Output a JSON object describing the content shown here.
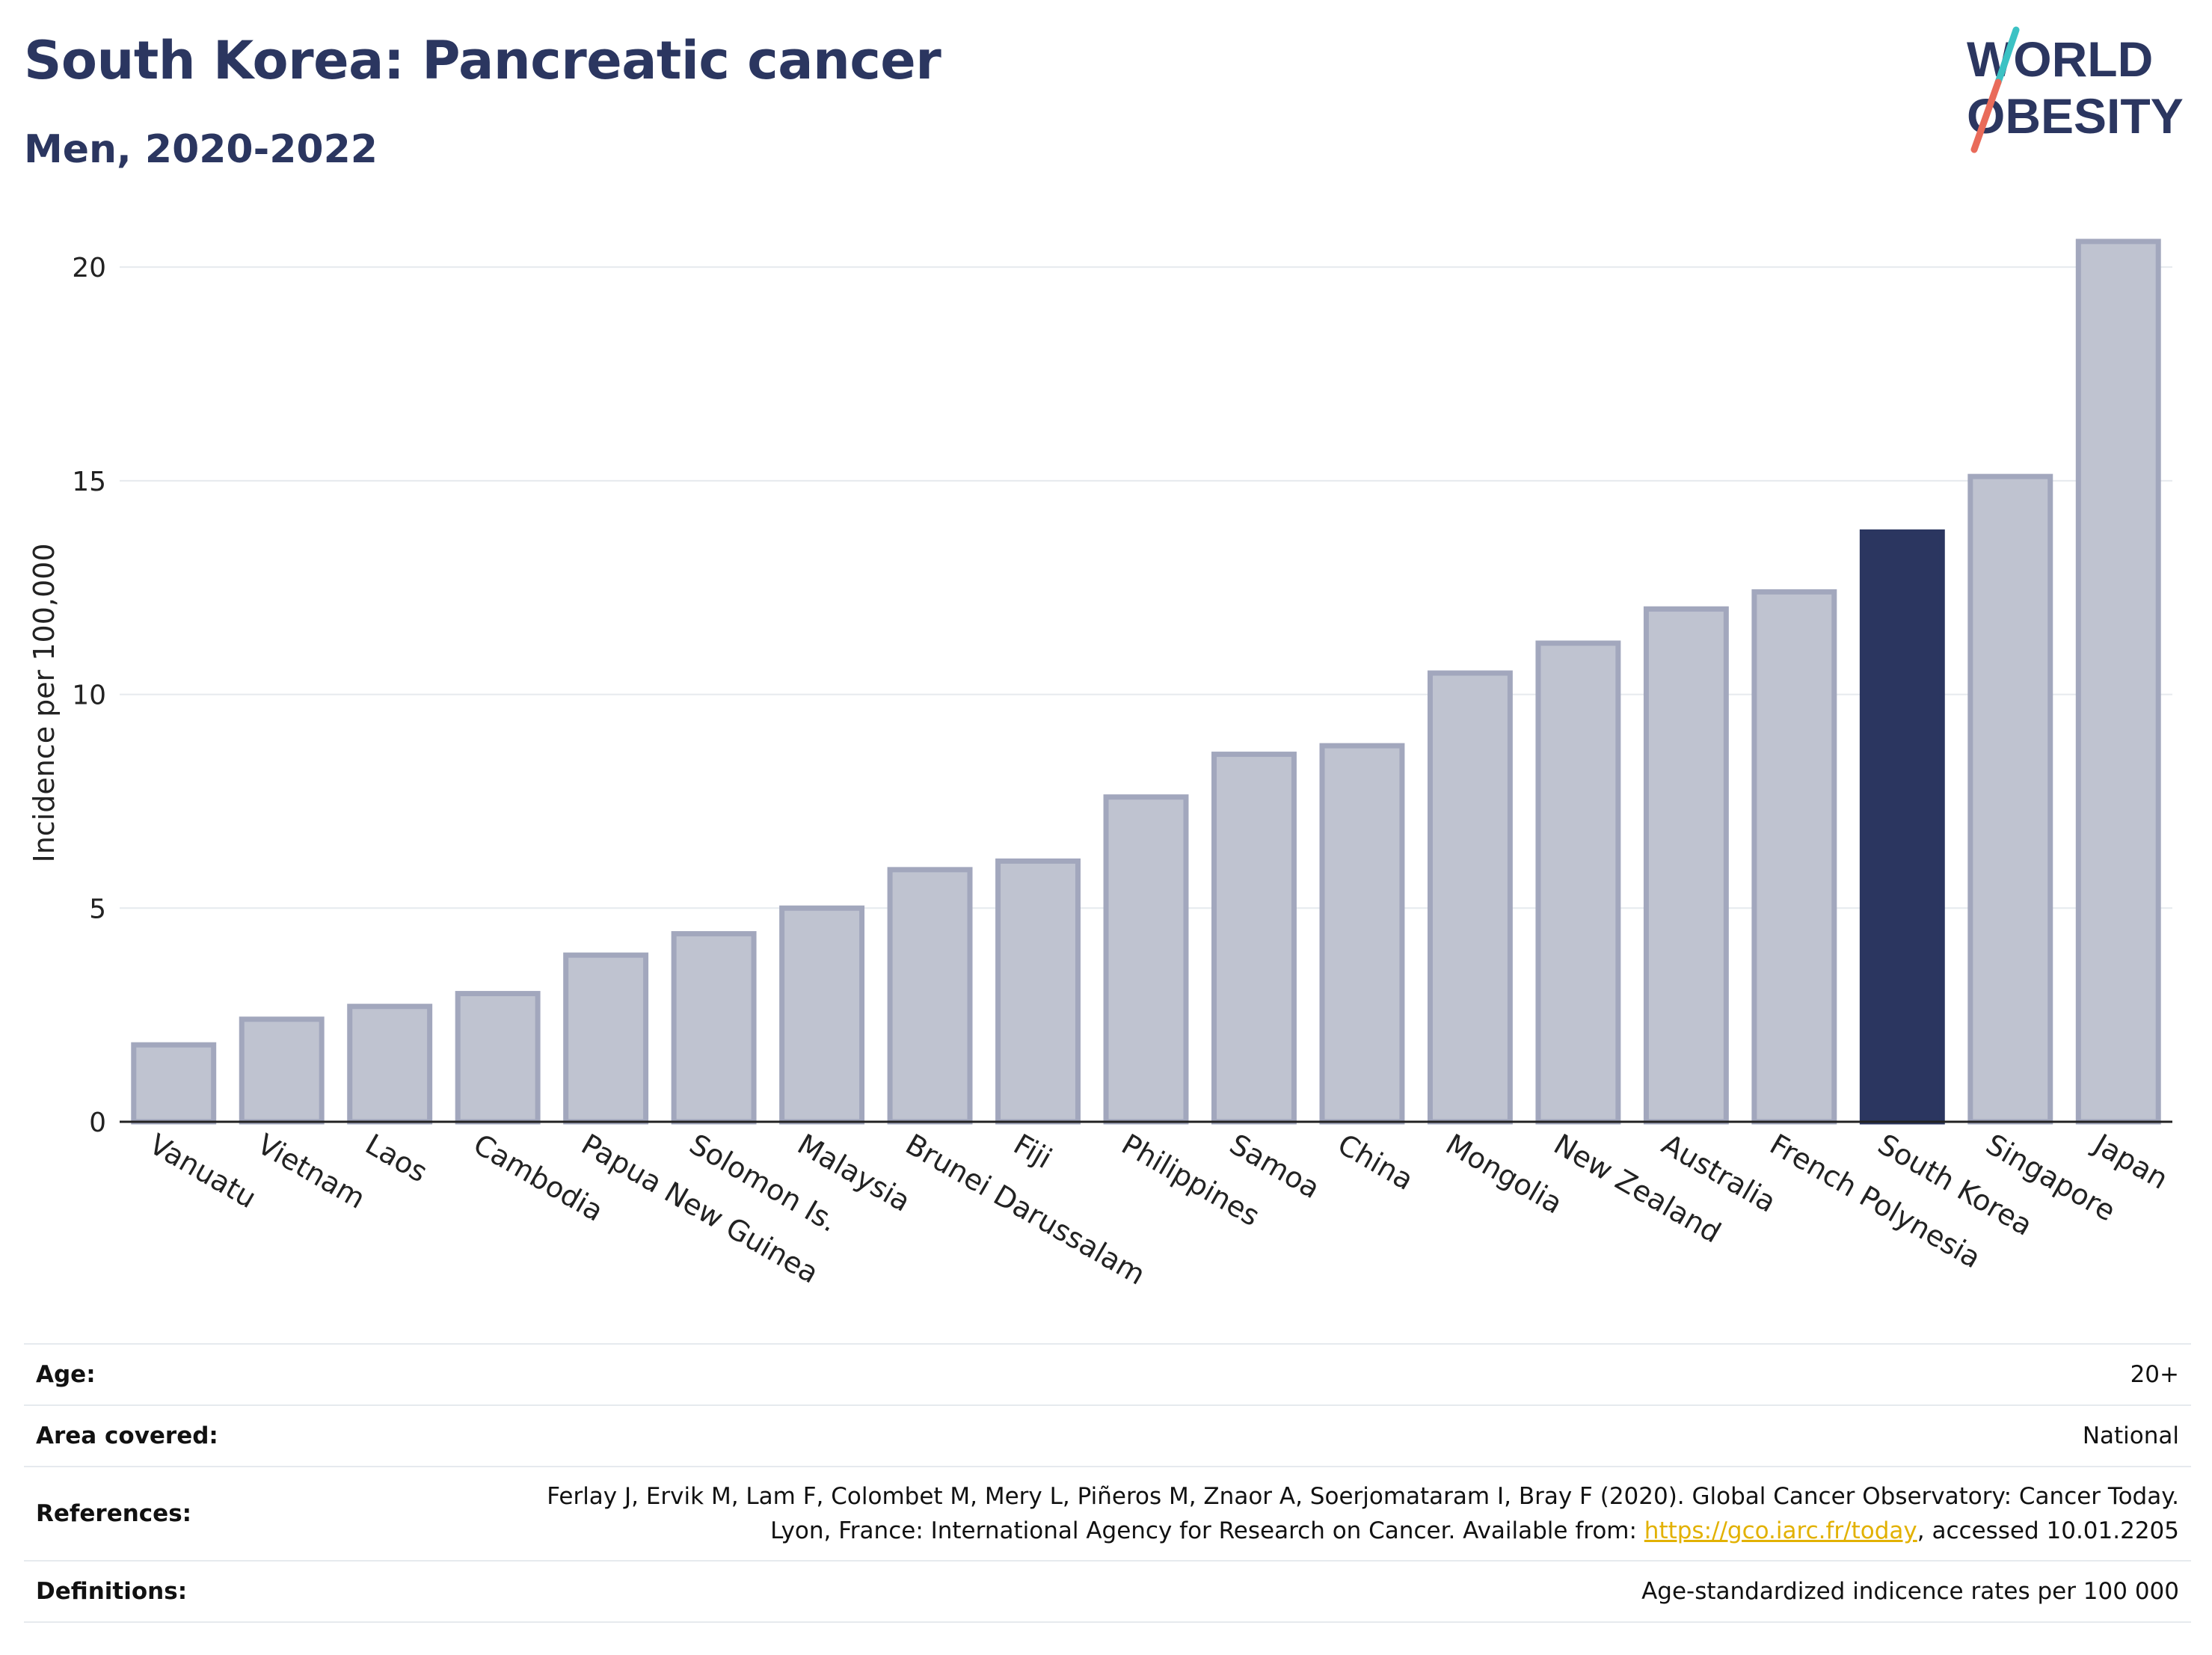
{
  "title": "South Korea: Pancreatic cancer",
  "subtitle": "Men, 2020-2022",
  "logo": {
    "line1": "WORLD",
    "line2": "OBESITY"
  },
  "colors": {
    "highlight": "#2b3660",
    "bar_fill": "#bfc3d0",
    "bar_stroke": "#a2a7bd",
    "grid": "#e6eaee",
    "title": "#2b3660"
  },
  "chart_data": {
    "type": "bar",
    "categories": [
      "Vanuatu",
      "Vietnam",
      "Laos",
      "Cambodia",
      "Papua New Guinea",
      "Solomon Is.",
      "Malaysia",
      "Brunei Darussalam",
      "Fiji",
      "Philippines",
      "Samoa",
      "China",
      "Mongolia",
      "New Zealand",
      "Australia",
      "French Polynesia",
      "South Korea",
      "Singapore",
      "Japan"
    ],
    "values": [
      1.8,
      2.4,
      2.7,
      3.0,
      3.9,
      4.4,
      5.0,
      5.9,
      6.1,
      7.6,
      8.6,
      8.8,
      10.5,
      11.2,
      12.0,
      12.4,
      13.8,
      15.1,
      20.6
    ],
    "highlight": "South Korea",
    "ylabel": "Incidence per 100,000",
    "ylim": [
      0,
      21
    ],
    "yticks": [
      0,
      5,
      10,
      15,
      20
    ],
    "grid": true
  },
  "meta": {
    "age": {
      "label": "Age:",
      "value": "20+"
    },
    "area": {
      "label": "Area covered:",
      "value": "National"
    },
    "references": {
      "label": "References:",
      "text_before": "Ferlay J, Ervik M, Lam F, Colombet M, Mery L, Piñeros M, Znaor A, Soerjomataram I, Bray F (2020). Global Cancer Observatory: Cancer Today. Lyon, France: International Agency for Research on Cancer. Available from: ",
      "link": "https://gco.iarc.fr/today",
      "text_after": ", accessed 10.01.2205"
    },
    "definitions": {
      "label": "Definitions:",
      "value": "Age-standardized indicence rates per 100 000"
    }
  }
}
